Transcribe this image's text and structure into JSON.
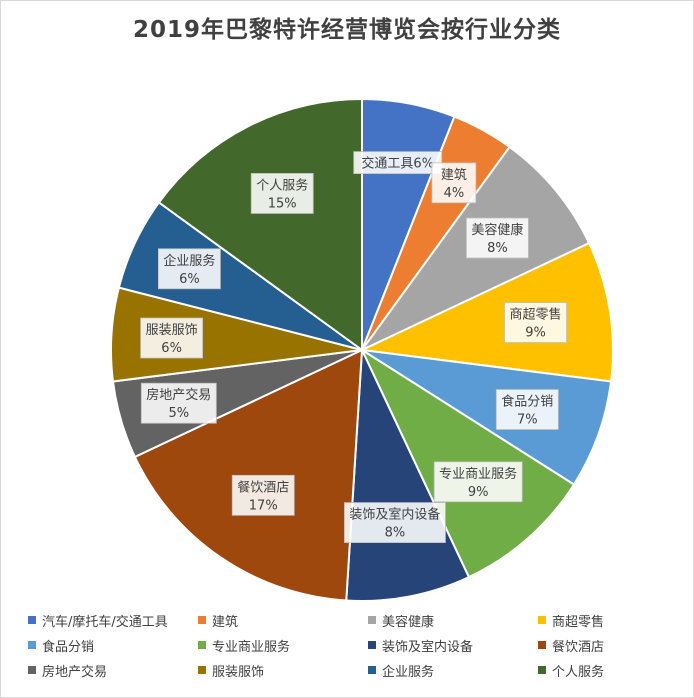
{
  "chart_data": {
    "type": "pie",
    "title": "2019年巴黎特许经营博览会按行业分类",
    "legend_position": "bottom",
    "slices": [
      {
        "name": "汽车/摩托车/交通工具",
        "label": "交通工具",
        "value": 6,
        "color": "#4472C4"
      },
      {
        "name": "建筑",
        "label": "建筑",
        "value": 4,
        "color": "#ED7D31"
      },
      {
        "name": "美容健康",
        "label": "美容健康",
        "value": 8,
        "color": "#A5A5A5"
      },
      {
        "name": "商超零售",
        "label": "商超零售",
        "value": 9,
        "color": "#FFC000"
      },
      {
        "name": "食品分销",
        "label": "食品分销",
        "value": 7,
        "color": "#5B9BD5"
      },
      {
        "name": "专业商业服务",
        "label": "专业商业服务",
        "value": 9,
        "color": "#70AD47"
      },
      {
        "name": "装饰及室内设备",
        "label": "装饰及室内设备",
        "value": 8,
        "color": "#264478"
      },
      {
        "name": "餐饮酒店",
        "label": "餐饮酒店",
        "value": 17,
        "color": "#9E480E"
      },
      {
        "name": "房地产交易",
        "label": "房地产交易",
        "value": 5,
        "color": "#636363"
      },
      {
        "name": "服装服饰",
        "label": "服装服饰",
        "value": 6,
        "color": "#997300"
      },
      {
        "name": "企业服务",
        "label": "企业服务",
        "value": 6,
        "color": "#255E91"
      },
      {
        "name": "个人服务",
        "label": "个人服务",
        "value": 15,
        "color": "#43682B"
      }
    ]
  }
}
